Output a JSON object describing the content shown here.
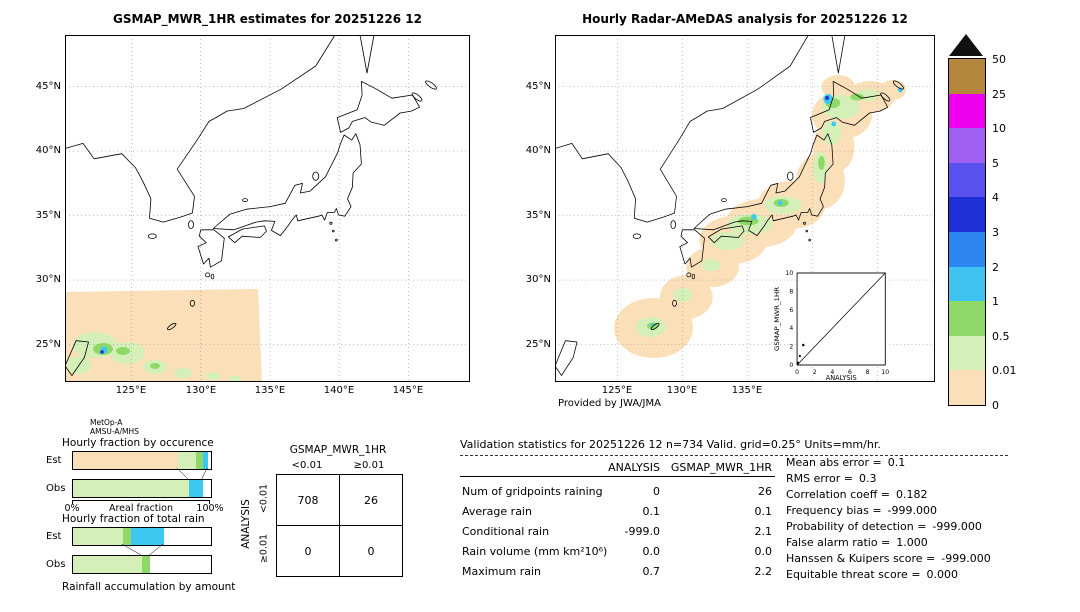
{
  "titles": {
    "left": "GSMAP_MWR_1HR estimates for 20251226 12",
    "right": "Hourly Radar-AMeDAS analysis for 20251226 12"
  },
  "colors": {
    "peach": "#fbdfb8",
    "palegreen": "#d4f0b8",
    "green": "#8ed968",
    "cyan": "#3cc8f0",
    "blue": "#1f2fd8",
    "cb_triangle": "#111111"
  },
  "colorbar": {
    "labels": [
      "50",
      "25",
      "10",
      "5",
      "4",
      "3",
      "2",
      "1",
      "0.5",
      "0.01",
      "0"
    ],
    "colors": [
      "#b5873c",
      "#ee00ee",
      "#9f5ff0",
      "#5a52ee",
      "#1f2fd8",
      "#2e86f0",
      "#41c3f2",
      "#8ed968",
      "#d4f0b8",
      "#fbdfb8"
    ]
  },
  "maps": {
    "lat_labels": [
      "45°N",
      "40°N",
      "35°N",
      "30°N",
      "25°N"
    ],
    "lon_labels": [
      "125°E",
      "130°E",
      "135°E",
      "140°E",
      "145°E"
    ],
    "left": {
      "footnote_line1": "MetOp-A",
      "footnote_line2": "AMSU-A/MHS"
    },
    "right": {
      "credit": "Provided by JWA/JMA",
      "inset": {
        "ylabel": "GSMAP_MWR_1HR",
        "xlabel": "ANALYSIS",
        "ticks": [
          "0",
          "2",
          "4",
          "6",
          "8",
          "10"
        ]
      }
    }
  },
  "fraction_charts": {
    "occurrence": {
      "title": "Hourly fraction by occurence",
      "rows": [
        {
          "label": "Est",
          "segments": [
            {
              "pct": 76,
              "color": "#fbdfb8"
            },
            {
              "pct": 13,
              "color": "#d4f0b8"
            },
            {
              "pct": 5,
              "color": "#8ed968"
            },
            {
              "pct": 4,
              "color": "#3cc8f0"
            }
          ]
        },
        {
          "label": "Obs",
          "segments": [
            {
              "pct": 84,
              "color": "#d4f0b8"
            },
            {
              "pct": 10,
              "color": "#3cc8f0"
            }
          ]
        }
      ]
    },
    "axis": {
      "left": "0%",
      "center": "Areal fraction",
      "right": "100%"
    },
    "total": {
      "title": "Hourly fraction of total rain",
      "rows": [
        {
          "label": "Est",
          "segments": [
            {
              "pct": 36,
              "color": "#d4f0b8"
            },
            {
              "pct": 6,
              "color": "#8ed968"
            },
            {
              "pct": 24,
              "color": "#3cc8f0"
            }
          ]
        },
        {
          "label": "Obs",
          "segments": [
            {
              "pct": 50,
              "color": "#d4f0b8"
            },
            {
              "pct": 6,
              "color": "#8ed968"
            }
          ]
        }
      ]
    },
    "bottom_label": "Rainfall accumulation by amount"
  },
  "contingency": {
    "title": "GSMAP_MWR_1HR",
    "col_labels": [
      "<0.01",
      "≥0.01"
    ],
    "row_header": "ANALYSIS",
    "row_labels": [
      "<0.01",
      "≥0.01"
    ],
    "values": [
      [
        "708",
        "26"
      ],
      [
        "0",
        "0"
      ]
    ]
  },
  "validation": {
    "title": "Validation statistics for 20251226 12  n=734 Valid. grid=0.25° Units=mm/hr.",
    "col_headers": [
      "ANALYSIS",
      "GSMAP_MWR_1HR"
    ],
    "rows": [
      {
        "name": "Num of gridpoints raining",
        "a": "0",
        "g": "26"
      },
      {
        "name": "Average rain",
        "a": "0.1",
        "g": "0.1"
      },
      {
        "name": "Conditional rain",
        "a": "-999.0",
        "g": "2.1"
      },
      {
        "name": "Rain volume (mm km²10⁶)",
        "a": "0.0",
        "g": "0.0"
      },
      {
        "name": "Maximum rain",
        "a": "0.7",
        "g": "2.2"
      }
    ],
    "stats": [
      {
        "label": "Mean abs error =",
        "value": "0.1"
      },
      {
        "label": "RMS error =",
        "value": "0.3"
      },
      {
        "label": "Correlation coeff =",
        "value": "0.182"
      },
      {
        "label": "Frequency bias =",
        "value": "-999.000"
      },
      {
        "label": "Probability of detection =",
        "value": "-999.000"
      },
      {
        "label": "False alarm ratio =",
        "value": "1.000"
      },
      {
        "label": "Hanssen & Kuipers score =",
        "value": "-999.000"
      },
      {
        "label": "Equitable threat score =",
        "value": "0.000"
      }
    ]
  },
  "chart_data": [
    {
      "type": "heatmap",
      "title": "GSMAP_MWR_1HR estimates for 20251226 12",
      "x": "longitude",
      "y": "latitude",
      "xlim": [
        "120°E",
        "149°E"
      ],
      "ylim": [
        "22°N",
        "49°N"
      ],
      "xticks": [
        "125°E",
        "130°E",
        "135°E",
        "140°E",
        "145°E"
      ],
      "yticks": [
        "25°N",
        "30°N",
        "35°N",
        "40°N",
        "45°N"
      ],
      "units": "mm/hr",
      "scale_breaks_mm_hr": [
        0,
        0.01,
        0.5,
        1,
        2,
        3,
        4,
        5,
        10,
        25,
        50
      ],
      "overflow_marker": "black triangle above colorbar = >50",
      "sensor": "MetOp-A AMSU-A/MHS",
      "summary": "Satellite swath (0 mm/hr background, peach) covers the south-west quarter of the domain up to ~30°N/135°E; light rain 0.01-2 mm/hr with small cores >1 mm/hr near northern Taiwan around 25°N 121-122°E"
    },
    {
      "type": "heatmap",
      "title": "Hourly Radar-AMeDAS analysis for 20251226 12",
      "units": "mm/hr",
      "credit": "Provided by JWA/JMA",
      "summary": "Rain band 0.01-3 mm/hr stretching from Okinawa across Kyushu, Kinki and Tohoku to Hokkaido; cyan/blue cores 1-4 mm/hr near 34°N 135°E and over western Hokkaido",
      "inset_scatter": {
        "xlabel": "ANALYSIS",
        "ylabel": "GSMAP_MWR_1HR",
        "xlim": [
          0,
          10
        ],
        "ylim": [
          0,
          10
        ],
        "diagonal": true,
        "points": [
          [
            0.1,
            0.2
          ],
          [
            0.3,
            1.0
          ],
          [
            0.7,
            2.2
          ]
        ]
      }
    },
    {
      "type": "bar",
      "title": "Hourly fraction by occurence",
      "orientation": "horizontal",
      "stacked": true,
      "categories": [
        "Est",
        "Obs"
      ],
      "xlabel": "Areal fraction",
      "xlim": [
        "0%",
        "100%"
      ],
      "series_pct": {
        "Est": {
          "0-0.01": 76,
          "0.01-0.5": 13,
          "0.5-1": 5,
          "1-2": 4
        },
        "Obs": {
          "0.01-0.5": 84,
          "1-2": 10
        }
      }
    },
    {
      "type": "bar",
      "title": "Hourly fraction of total rain",
      "orientation": "horizontal",
      "stacked": true,
      "categories": [
        "Est",
        "Obs"
      ],
      "note": "Rainfall accumulation by amount",
      "series_pct": {
        "Est": {
          "0.01-0.5": 36,
          "0.5-1": 6,
          "1-2": 24
        },
        "Obs": {
          "0.01-0.5": 50,
          "0.5-1": 6
        }
      }
    },
    {
      "type": "table",
      "title": "Contingency table (columns GSMAP_MWR_1HR, rows ANALYSIS)",
      "columns": [
        "<0.01",
        "≥0.01"
      ],
      "rows": [
        {
          "row": "<0.01",
          "values": [
            708,
            26
          ]
        },
        {
          "row": "≥0.01",
          "values": [
            0,
            0
          ]
        }
      ]
    },
    {
      "type": "table",
      "title": "Validation statistics for 20251226 12  n=734 Valid. grid=0.25° Units=mm/hr.",
      "columns": [
        "ANALYSIS",
        "GSMAP_MWR_1HR"
      ],
      "rows": [
        {
          "name": "Num of gridpoints raining",
          "values": [
            0,
            26
          ]
        },
        {
          "name": "Average rain",
          "values": [
            0.1,
            0.1
          ]
        },
        {
          "name": "Conditional rain",
          "values": [
            -999.0,
            2.1
          ]
        },
        {
          "name": "Rain volume (mm km²10⁶)",
          "values": [
            0.0,
            0.0
          ]
        },
        {
          "name": "Maximum rain",
          "values": [
            0.7,
            2.2
          ]
        }
      ]
    },
    {
      "type": "table",
      "title": "Skill scores",
      "rows": [
        {
          "name": "Mean abs error",
          "value": 0.1
        },
        {
          "name": "RMS error",
          "value": 0.3
        },
        {
          "name": "Correlation coeff",
          "value": 0.182
        },
        {
          "name": "Frequency bias",
          "value": -999.0
        },
        {
          "name": "Probability of detection",
          "value": -999.0
        },
        {
          "name": "False alarm ratio",
          "value": 1.0
        },
        {
          "name": "Hanssen & Kuipers score",
          "value": -999.0
        },
        {
          "name": "Equitable threat score",
          "value": 0.0
        }
      ]
    }
  ]
}
